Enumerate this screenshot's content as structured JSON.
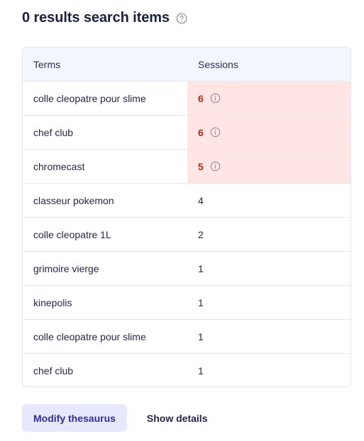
{
  "header": {
    "title": "0 results search items",
    "help_icon": "question-circle-icon"
  },
  "table": {
    "columns": {
      "terms": "Terms",
      "sessions": "Sessions"
    },
    "rows": [
      {
        "term": "colle cleopatre pour slime",
        "sessions": "6",
        "alert": true
      },
      {
        "term": "chef club",
        "sessions": "6",
        "alert": true
      },
      {
        "term": "chromecast",
        "sessions": "5",
        "alert": true
      },
      {
        "term": "classeur pokemon",
        "sessions": "4",
        "alert": false
      },
      {
        "term": "colle cleopatre 1L",
        "sessions": "2",
        "alert": false
      },
      {
        "term": "grimoire vierge",
        "sessions": "1",
        "alert": false
      },
      {
        "term": "kinepolis",
        "sessions": "1",
        "alert": false
      },
      {
        "term": "colle cleopatre pour slime",
        "sessions": "1",
        "alert": false
      },
      {
        "term": "chef club",
        "sessions": "1",
        "alert": false
      }
    ]
  },
  "footer": {
    "modify_label": "Modify thesaurus",
    "details_label": "Show details"
  },
  "colors": {
    "alert_bg": "#ffe5e3",
    "alert_text": "#b42a14",
    "header_bg": "#f3f6fe",
    "primary_btn_bg": "#e6e8fd"
  }
}
